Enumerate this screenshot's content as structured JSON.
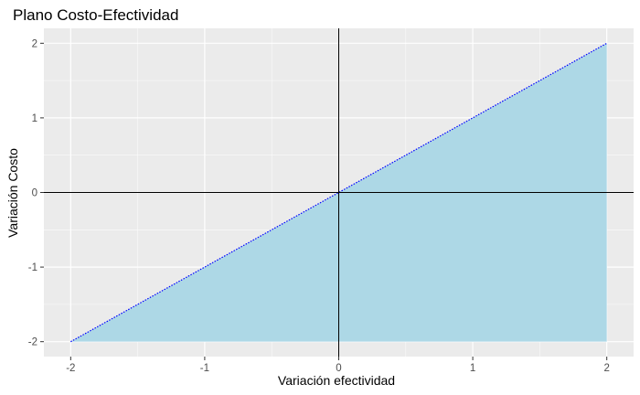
{
  "chart_data": {
    "type": "area",
    "title": "Plano Costo-Efectividad",
    "xlabel": "Variación efectividad",
    "ylabel": "Variación Costo",
    "xlim": [
      -2.2,
      2.2
    ],
    "ylim": [
      -2.2,
      2.2
    ],
    "x_ticks": [
      -2,
      -1,
      0,
      1,
      2
    ],
    "y_ticks": [
      -2,
      -1,
      0,
      1,
      2
    ],
    "x_tick_labels": [
      "-2",
      "-1",
      "0",
      "1",
      "2"
    ],
    "y_tick_labels": [
      "-2",
      "-1",
      "0",
      "1",
      "2"
    ],
    "grid": true,
    "reference_lines": {
      "x": 0,
      "y": 0
    },
    "line": {
      "x": [
        -2,
        2
      ],
      "y": [
        -2,
        2
      ],
      "style": "dotted",
      "color": "#0000ff"
    },
    "shaded_region": {
      "vertices": [
        [
          -2,
          -2
        ],
        [
          2,
          2
        ],
        [
          2,
          -2
        ]
      ],
      "color": "#add8e6"
    },
    "colors": {
      "panel_background": "#ebebeb",
      "grid_major": "#ffffff",
      "reference_lines": "#000000"
    }
  }
}
